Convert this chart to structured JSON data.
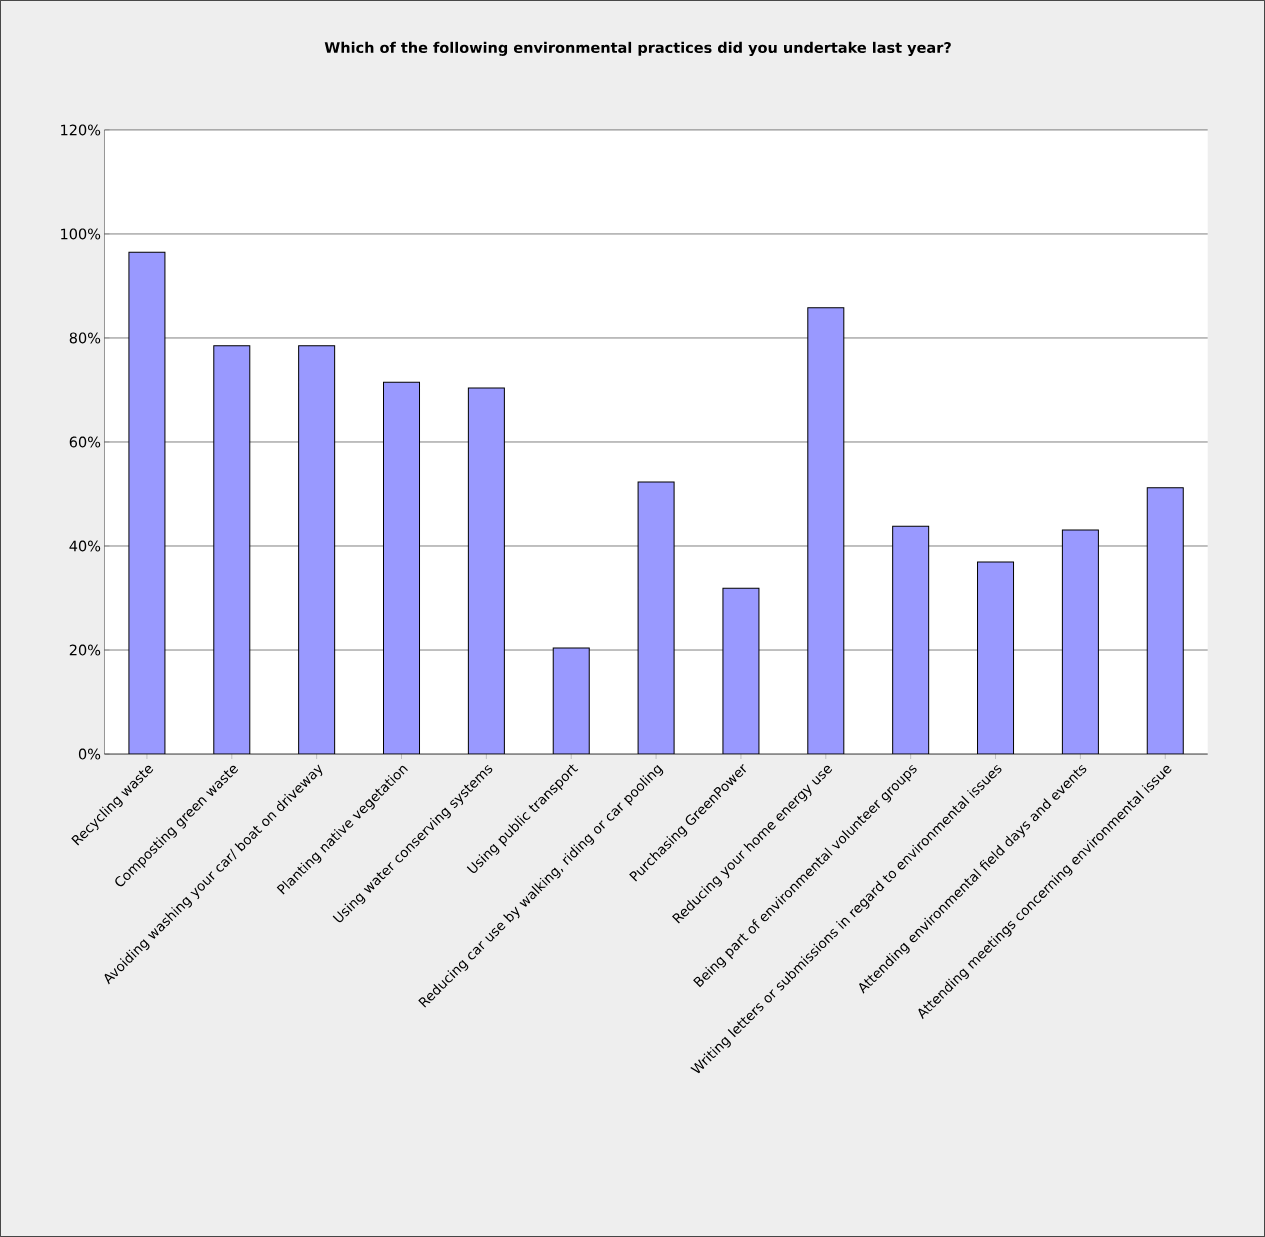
{
  "chart_data": {
    "type": "bar",
    "title": "Which of the following environmental  practices did you undertake last year?",
    "categories": [
      "Recycling waste",
      "Composting green waste",
      "Avoiding washing your car/ boat on driveway",
      "Planting native vegetation",
      "Using  water conserving systems",
      "Using public transport",
      "Reducing car use by walking, riding or car pooling",
      "Purchasing GreenPower",
      "Reducing your home energy use",
      "Being part of environmental volunteer groups",
      "Writing letters or submissions in regard to environmental issues",
      "Attending environmental field days and events",
      "Attending meetings concerning environmental issue"
    ],
    "values": [
      96.5,
      78.5,
      78.5,
      71.5,
      70.4,
      20.4,
      52.3,
      31.9,
      85.8,
      43.8,
      36.9,
      43.1,
      51.2
    ],
    "color": "#9999ff",
    "ylim": [
      0,
      120
    ],
    "yticks": [
      {
        "value": 0,
        "label": "0%"
      },
      {
        "value": 20,
        "label": "20%"
      },
      {
        "value": 40,
        "label": "40%"
      },
      {
        "value": 60,
        "label": "60%"
      },
      {
        "value": 80,
        "label": "80%"
      },
      {
        "value": 100,
        "label": "100%"
      },
      {
        "value": 120,
        "label": "120%"
      }
    ],
    "grid": "y"
  }
}
